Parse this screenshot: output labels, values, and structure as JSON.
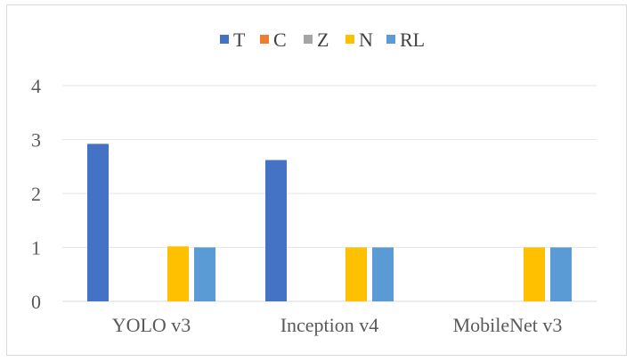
{
  "chart_data": {
    "type": "bar",
    "categories": [
      "YOLO v3",
      "Inception v4",
      "MobileNet v3"
    ],
    "series": [
      {
        "name": "T",
        "color": "#4472C4",
        "values": [
          2.92,
          2.62,
          0
        ]
      },
      {
        "name": "C",
        "color": "#ED7D31",
        "values": [
          0,
          0,
          0
        ]
      },
      {
        "name": "Z",
        "color": "#A5A5A5",
        "values": [
          0,
          0,
          0
        ]
      },
      {
        "name": "N",
        "color": "#FFC000",
        "values": [
          1.02,
          1.0,
          1.0
        ]
      },
      {
        "name": "RL",
        "color": "#5B9BD5",
        "values": [
          1.0,
          1.0,
          1.0
        ]
      }
    ],
    "ylim": [
      0,
      4
    ],
    "yticks": [
      "0",
      "1",
      "2",
      "3",
      "4"
    ],
    "grid": true,
    "legend_position": "top-center",
    "title": "",
    "xlabel": "",
    "ylabel": ""
  }
}
